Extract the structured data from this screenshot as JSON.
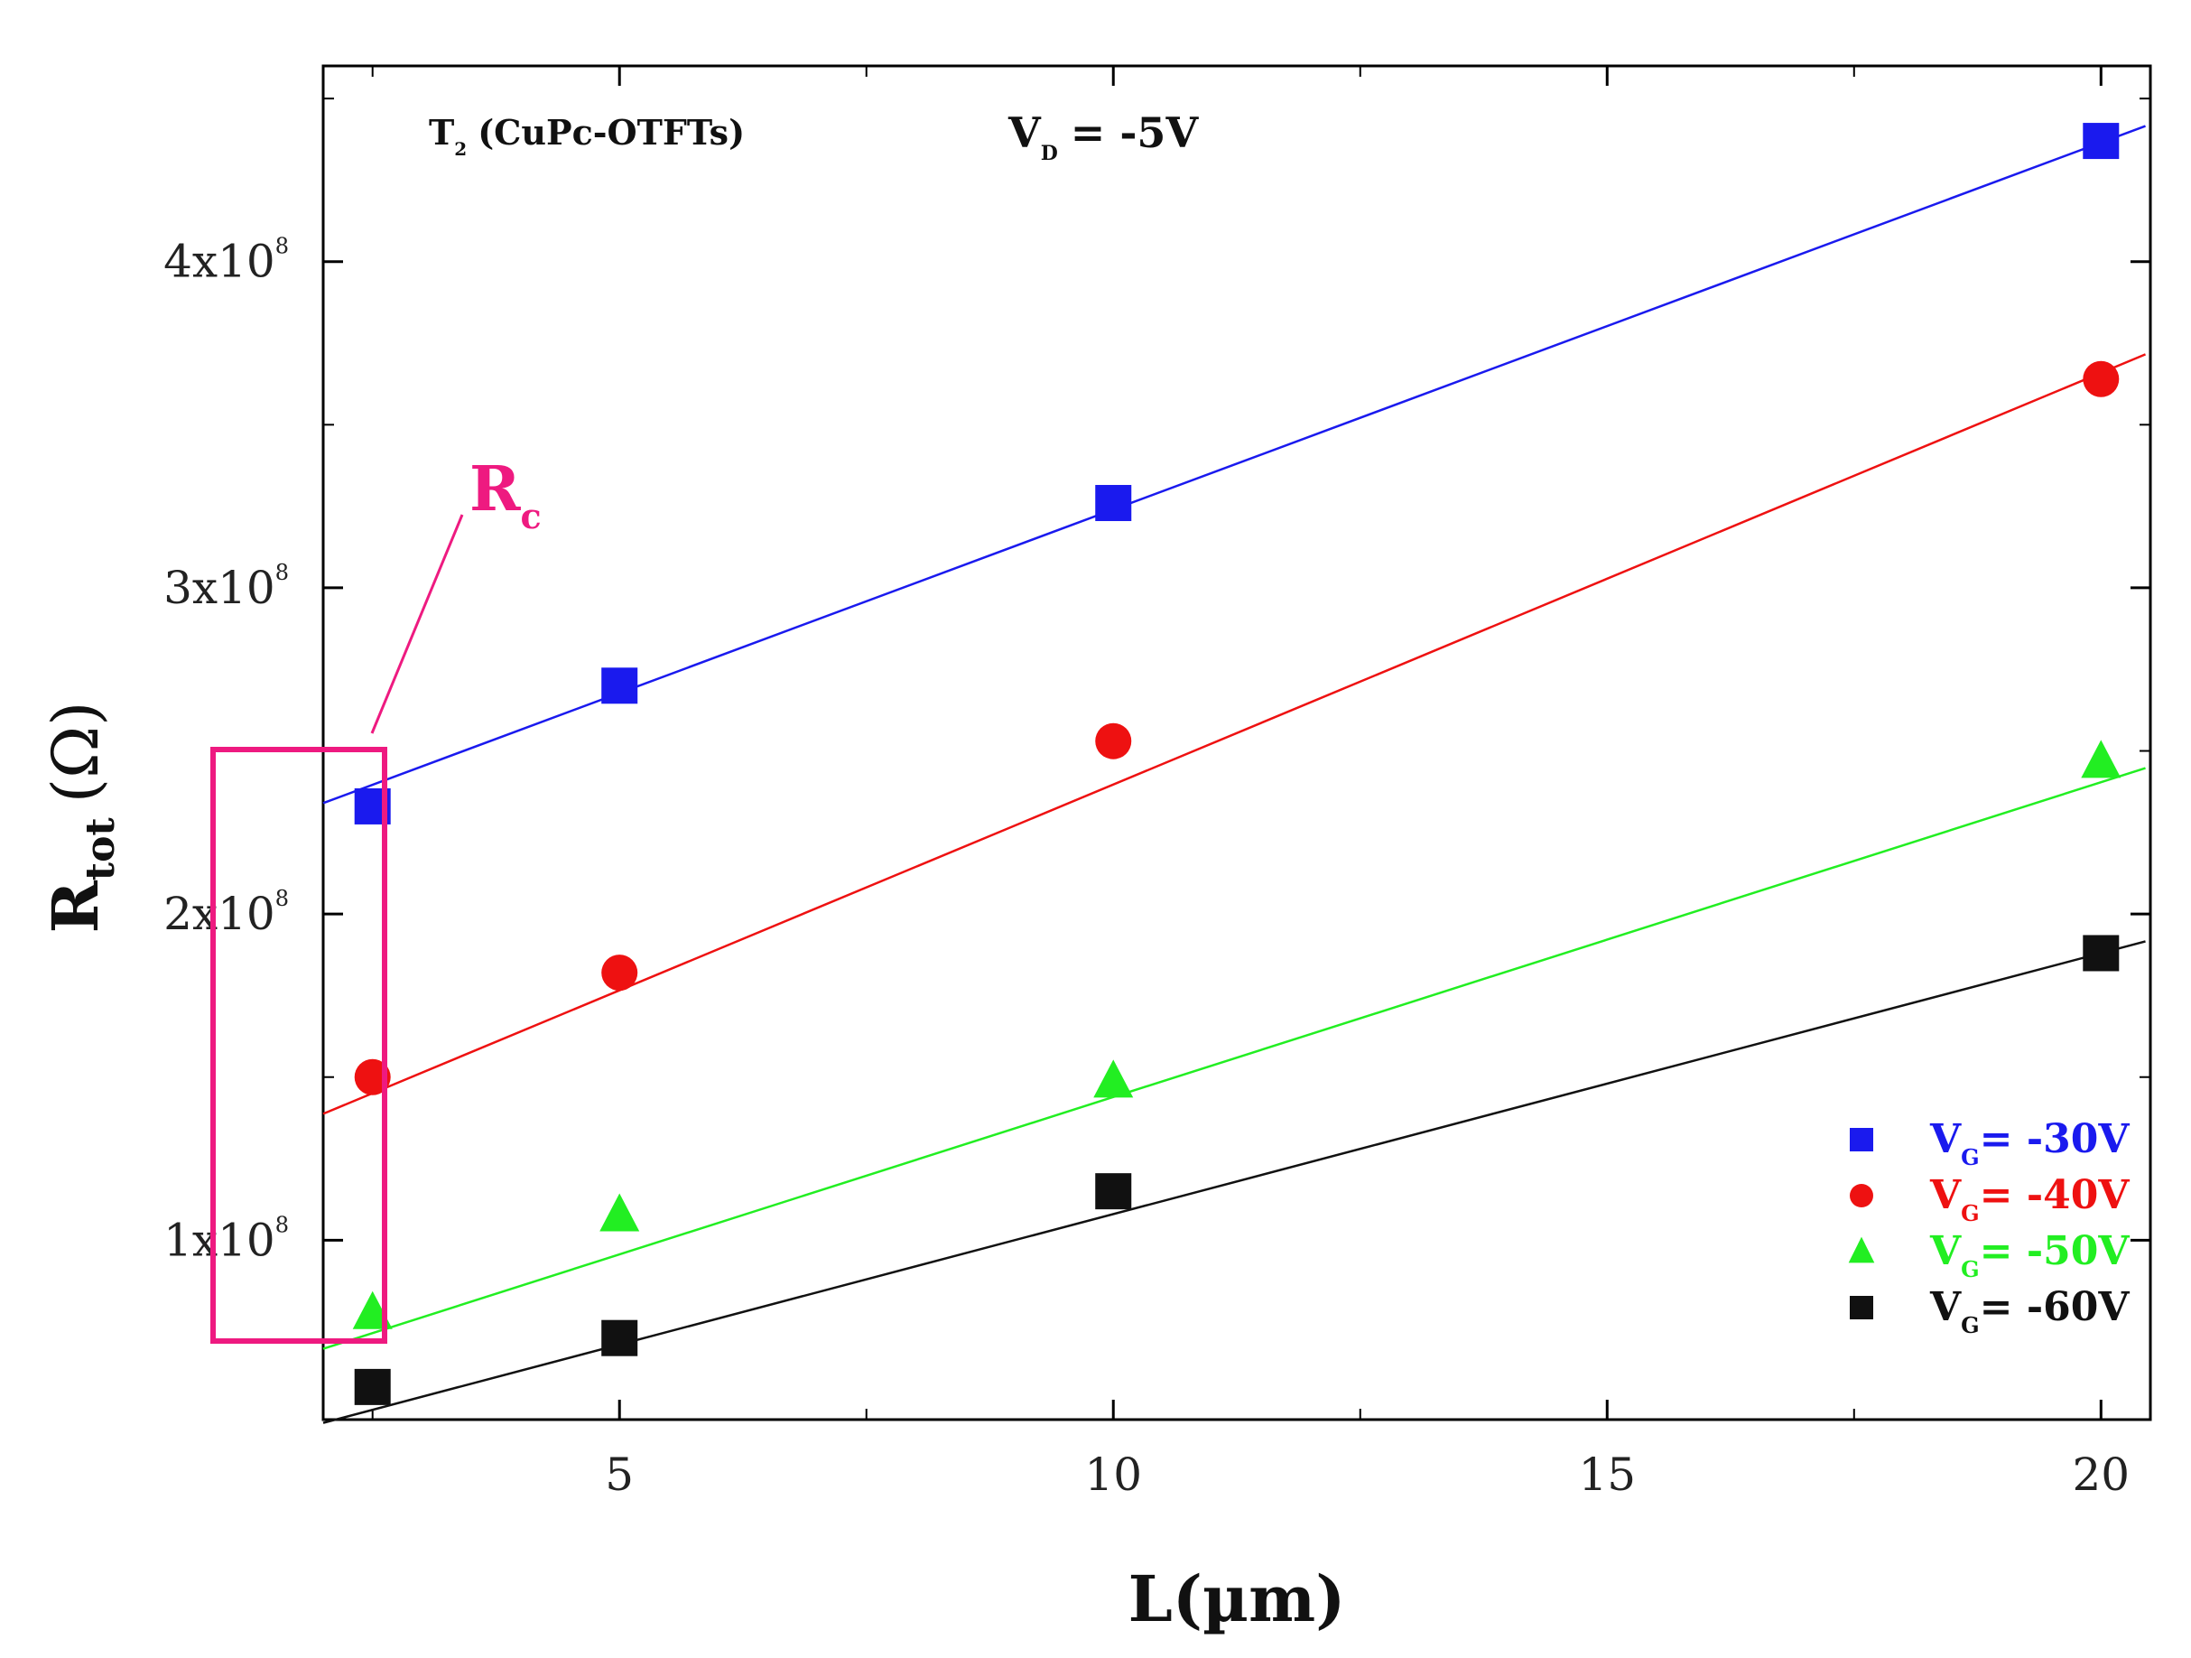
{
  "chart_data": {
    "type": "scatter",
    "title": "",
    "xlabel": "L(µm)",
    "ylabel": "R_tot (Ω)",
    "ylabel_parts": {
      "main": "R",
      "sub": "tot",
      "unit": "(Ω)"
    },
    "xlim": [
      2,
      20.5
    ],
    "ylim": [
      0.45,
      4.6
    ],
    "y_multiplier": "10^8",
    "x_ticks": [
      {
        "value": 5,
        "label": "5"
      },
      {
        "value": 10,
        "label": "10"
      },
      {
        "value": 15,
        "label": "15"
      },
      {
        "value": 20,
        "label": "20"
      }
    ],
    "x_minor_ticks": [
      2.5,
      7.5,
      12.5,
      17.5
    ],
    "y_ticks": [
      {
        "value": 1,
        "mant": "1x10",
        "exp": "8"
      },
      {
        "value": 2,
        "mant": "2x10",
        "exp": "8"
      },
      {
        "value": 3,
        "mant": "3x10",
        "exp": "8"
      },
      {
        "value": 4,
        "mant": "4x10",
        "exp": "8"
      }
    ],
    "y_minor_ticks": [
      1.5,
      2.5,
      3.5,
      4.5
    ],
    "series": [
      {
        "name": "V_G = -30V",
        "label_main": "V",
        "label_sub": "G",
        "label_rest": "= -30V",
        "color": "#1a1aee",
        "marker": "square",
        "x": [
          2.5,
          5,
          10,
          20
        ],
        "y": [
          2.33,
          2.7,
          3.26,
          4.37
        ],
        "fit": {
          "intercept": 2.115,
          "slope": 0.1125
        }
      },
      {
        "name": "V_G = -40V",
        "label_main": "V",
        "label_sub": "G",
        "label_rest": "= -40V",
        "color": "#ee1111",
        "marker": "circle",
        "x": [
          2.5,
          5,
          10,
          20
        ],
        "y": [
          1.5,
          1.82,
          2.53,
          3.64
        ],
        "fit": {
          "intercept": 1.135,
          "slope": 0.1262
        }
      },
      {
        "name": "V_G = -50V",
        "label_main": "V",
        "label_sub": "G",
        "label_rest": "= -50V",
        "color": "#22ee22",
        "marker": "triangle",
        "x": [
          2.5,
          5,
          10,
          20
        ],
        "y": [
          0.78,
          1.08,
          1.49,
          2.47
        ],
        "fit": {
          "intercept": 0.474,
          "slope": 0.0965
        }
      },
      {
        "name": "V_G = -60V",
        "label_main": "V",
        "label_sub": "G",
        "label_rest": "= -60V",
        "color": "#111111",
        "marker": "square",
        "x": [
          2.5,
          5,
          10,
          20
        ],
        "y": [
          0.55,
          0.7,
          1.15,
          1.88
        ],
        "fit": {
          "intercept": 0.28,
          "slope": 0.08
        }
      }
    ],
    "annotations": {
      "sample": {
        "main": "T",
        "sub": "2",
        "rest": "(CuPc-OTFTs)"
      },
      "drain": {
        "main": "V",
        "sub": "D",
        "rest": "= -5V"
      },
      "rc": {
        "main": "R",
        "sub": "c",
        "color": "#ee1a80"
      }
    },
    "legend_position": "bottom-right"
  }
}
